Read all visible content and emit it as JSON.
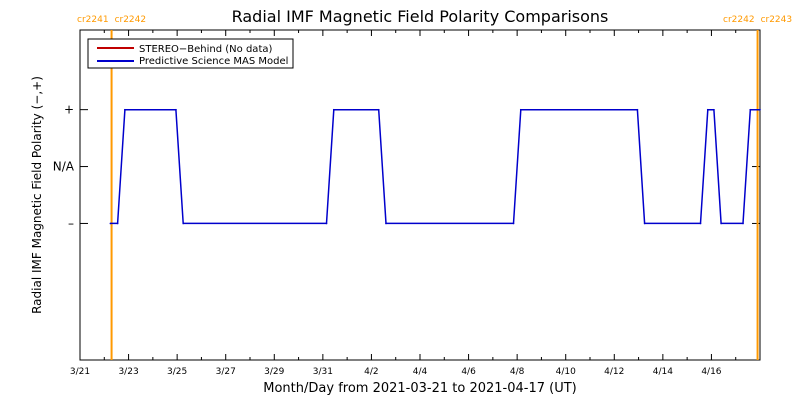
{
  "chart_data": {
    "type": "line",
    "title": "Radial IMF Magnetic Field Polarity Comparisons",
    "xlabel": "Month/Day from 2021-03-21 to 2021-04-17 (UT)",
    "ylabel": "Radial IMF Magnetic Field Polarity (−,+)",
    "x_unit": "days from 2021-03-21 00:00 UT",
    "xlim": [
      0,
      28
    ],
    "ylim": [
      -1.7,
      1.2
    ],
    "x_ticks": [
      {
        "x": 0,
        "label": "3/21"
      },
      {
        "x": 2,
        "label": "3/23"
      },
      {
        "x": 4,
        "label": "3/25"
      },
      {
        "x": 6,
        "label": "3/27"
      },
      {
        "x": 8,
        "label": "3/29"
      },
      {
        "x": 10,
        "label": "3/31"
      },
      {
        "x": 12,
        "label": "4/2"
      },
      {
        "x": 14,
        "label": "4/4"
      },
      {
        "x": 16,
        "label": "4/6"
      },
      {
        "x": 18,
        "label": "4/8"
      },
      {
        "x": 20,
        "label": "4/10"
      },
      {
        "x": 22,
        "label": "4/12"
      },
      {
        "x": 24,
        "label": "4/14"
      },
      {
        "x": 26,
        "label": "4/16"
      }
    ],
    "y_ticks": [
      {
        "y": 0.5,
        "label": "+"
      },
      {
        "y": 0,
        "label": "N/A"
      },
      {
        "y": -0.5,
        "label": "–"
      }
    ],
    "legend": {
      "placement": "top-left",
      "entries": [
        {
          "label": "STEREO−Behind (No data)",
          "color": "#c00000"
        },
        {
          "label": "Predictive Science MAS Model",
          "color": "#0000cc"
        }
      ]
    },
    "carrington_markers": [
      {
        "x": 1.3,
        "label_left": "cr2241",
        "label_right": "cr2242",
        "color": "#ff9900"
      },
      {
        "x": 27.9,
        "label_left": "cr2242",
        "label_right": "cr2243",
        "color": "#ff9900"
      }
    ],
    "series": [
      {
        "name": "Predictive Science MAS Model",
        "color": "#0000cc",
        "x": [
          1.25,
          1.55,
          1.85,
          3.95,
          4.25,
          10.15,
          10.45,
          12.3,
          12.6,
          17.85,
          18.15,
          22.95,
          23.25,
          25.55,
          25.85,
          26.1,
          26.4,
          27.3,
          27.6,
          28.0
        ],
        "y": [
          -0.5,
          -0.5,
          0.5,
          0.5,
          -0.5,
          -0.5,
          0.5,
          0.5,
          -0.5,
          -0.5,
          0.5,
          0.5,
          -0.5,
          -0.5,
          0.5,
          0.5,
          -0.5,
          -0.5,
          0.5,
          0.5
        ]
      }
    ]
  }
}
